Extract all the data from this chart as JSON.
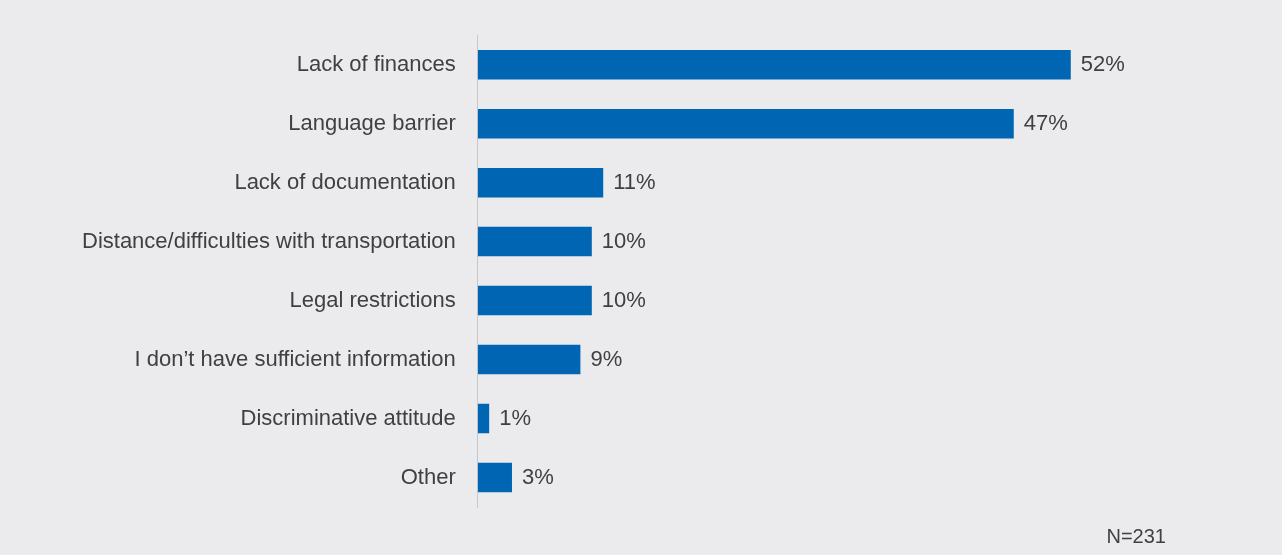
{
  "chart_data": {
    "type": "bar",
    "orientation": "horizontal",
    "categories": [
      "Lack of finances",
      "Language barrier",
      "Lack of documentation",
      "Distance/difficulties with transportation",
      "Legal restrictions",
      "I don’t have sufficient information",
      "Discriminative attitude",
      "Other"
    ],
    "values": [
      52,
      47,
      11,
      10,
      10,
      9,
      1,
      3
    ],
    "value_labels": [
      "52%",
      "47%",
      "11%",
      "10%",
      "10%",
      "9%",
      "1%",
      "3%"
    ],
    "color": "#0066b3",
    "tick_labels": "y",
    "annotations": [
      "N=231"
    ]
  }
}
